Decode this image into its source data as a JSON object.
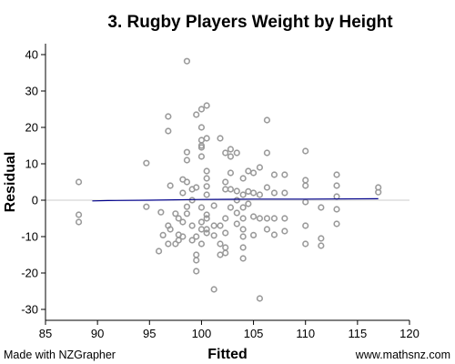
{
  "chart_data": {
    "type": "scatter",
    "title": "3. Rugby Players Weight by Height",
    "xlabel": "Fitted",
    "ylabel": "Residual",
    "xlim": [
      85,
      120
    ],
    "ylim": [
      -33,
      43
    ],
    "x_ticks": [
      85,
      90,
      95,
      100,
      105,
      110,
      115,
      120
    ],
    "y_ticks": [
      -30,
      -20,
      -10,
      0,
      10,
      20,
      30,
      40
    ],
    "grid": false,
    "reference_line_y": 0,
    "trend_line": [
      [
        89.5,
        -0.2
      ],
      [
        91,
        -0.1
      ],
      [
        95,
        0
      ],
      [
        100,
        0.2
      ],
      [
        105,
        0.3
      ],
      [
        110,
        0.3
      ],
      [
        117,
        0.4
      ]
    ],
    "points": [
      [
        88.2,
        5
      ],
      [
        88.2,
        -4
      ],
      [
        88.2,
        -6
      ],
      [
        94.7,
        10.2
      ],
      [
        94.7,
        -1.8
      ],
      [
        95.9,
        -14
      ],
      [
        96.1,
        -3.3
      ],
      [
        96.3,
        -9.6
      ],
      [
        96.8,
        23
      ],
      [
        96.8,
        19
      ],
      [
        96.8,
        -7
      ],
      [
        96.8,
        -12
      ],
      [
        97,
        4
      ],
      [
        97,
        -8
      ],
      [
        97.5,
        -12
      ],
      [
        97.5,
        -3.7
      ],
      [
        97.8,
        -9.5
      ],
      [
        97.8,
        -11
      ],
      [
        97.8,
        -5
      ],
      [
        98.2,
        5.7
      ],
      [
        98.2,
        2
      ],
      [
        98.2,
        -6
      ],
      [
        98.2,
        -10
      ],
      [
        98.6,
        38.2
      ],
      [
        98.6,
        13.2
      ],
      [
        98.6,
        11
      ],
      [
        98.6,
        5
      ],
      [
        98.6,
        -1.8
      ],
      [
        98.6,
        -3.7
      ],
      [
        99.1,
        3
      ],
      [
        99.1,
        0
      ],
      [
        99.1,
        -7
      ],
      [
        99.1,
        -11
      ],
      [
        99.5,
        23.5
      ],
      [
        99.5,
        3.5
      ],
      [
        99.5,
        -10
      ],
      [
        99.5,
        -15
      ],
      [
        99.5,
        -16.5
      ],
      [
        99.5,
        -19.5
      ],
      [
        100,
        25
      ],
      [
        100,
        20
      ],
      [
        100,
        16.5
      ],
      [
        100,
        15
      ],
      [
        100,
        14.5
      ],
      [
        100,
        12
      ],
      [
        100,
        -2
      ],
      [
        100,
        -6
      ],
      [
        100,
        -8
      ],
      [
        100,
        -12
      ],
      [
        100.5,
        26
      ],
      [
        100.5,
        17
      ],
      [
        100.5,
        8
      ],
      [
        100.5,
        6
      ],
      [
        100.5,
        3.8
      ],
      [
        100.5,
        1.5
      ],
      [
        100.5,
        -4
      ],
      [
        100.5,
        -5
      ],
      [
        100.5,
        -8
      ],
      [
        100.5,
        -9
      ],
      [
        101.2,
        -1.5
      ],
      [
        101.2,
        -7
      ],
      [
        101.2,
        -9.7
      ],
      [
        101.2,
        -24.5
      ],
      [
        101.8,
        17
      ],
      [
        101.8,
        -7
      ],
      [
        101.8,
        -12
      ],
      [
        101.8,
        -15
      ],
      [
        102.3,
        13
      ],
      [
        102.3,
        5
      ],
      [
        102.3,
        3
      ],
      [
        102.3,
        -5
      ],
      [
        102.3,
        -9
      ],
      [
        102.3,
        -13
      ],
      [
        102.3,
        -14.5
      ],
      [
        102.8,
        14
      ],
      [
        102.8,
        12
      ],
      [
        102.8,
        7.5
      ],
      [
        102.8,
        3
      ],
      [
        102.8,
        -2
      ],
      [
        103.4,
        13
      ],
      [
        103.4,
        2.5
      ],
      [
        103.4,
        0
      ],
      [
        103.4,
        -3.5
      ],
      [
        103.4,
        -6.5
      ],
      [
        104,
        6
      ],
      [
        104,
        1.5
      ],
      [
        104,
        -2
      ],
      [
        104,
        -5
      ],
      [
        104,
        -8
      ],
      [
        104,
        -10
      ],
      [
        104,
        -13
      ],
      [
        104,
        -16
      ],
      [
        104.5,
        8
      ],
      [
        104.5,
        2.4
      ],
      [
        104.5,
        -1
      ],
      [
        105,
        7.5
      ],
      [
        105,
        2
      ],
      [
        105,
        -4.5
      ],
      [
        105,
        -9.6
      ],
      [
        105.6,
        9
      ],
      [
        105.6,
        1.5
      ],
      [
        105.6,
        -5
      ],
      [
        105.6,
        -27
      ],
      [
        106.3,
        22
      ],
      [
        106.3,
        13
      ],
      [
        106.3,
        3.5
      ],
      [
        106.3,
        -5
      ],
      [
        106.3,
        -8
      ],
      [
        107,
        7
      ],
      [
        107,
        2
      ],
      [
        107,
        -5
      ],
      [
        107,
        -9.5
      ],
      [
        108,
        7
      ],
      [
        108,
        2
      ],
      [
        108,
        -5
      ],
      [
        108,
        -8.5
      ],
      [
        110,
        13.5
      ],
      [
        110,
        5.5
      ],
      [
        110,
        4
      ],
      [
        110,
        -0.5
      ],
      [
        110,
        -7
      ],
      [
        110,
        -12
      ],
      [
        111.5,
        -2
      ],
      [
        111.5,
        -10.5
      ],
      [
        111.5,
        -12.5
      ],
      [
        113,
        7
      ],
      [
        113,
        4
      ],
      [
        113,
        1
      ],
      [
        113,
        -2.5
      ],
      [
        113,
        -6.5
      ],
      [
        117,
        3.5
      ],
      [
        117,
        2.2
      ]
    ]
  },
  "footer": {
    "left": "Made with NZGrapher",
    "right": "www.mathsnz.com"
  },
  "colors": {
    "point": "#9a9a9a",
    "trend_line": "#00008b",
    "reference_line": "#cccccc",
    "axis": "#000000"
  }
}
